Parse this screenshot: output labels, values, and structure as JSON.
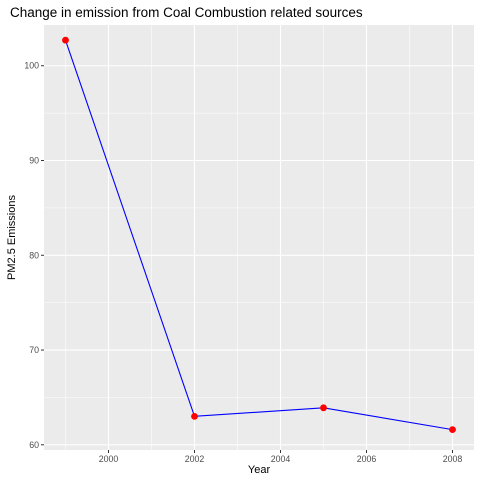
{
  "chart_data": {
    "type": "line",
    "title": "Change in emission from Coal Combustion related sources",
    "xlabel": "Year",
    "ylabel": "PM2.5 Emissions",
    "x": [
      1999,
      2002,
      2005,
      2008
    ],
    "series": [
      {
        "values": [
          102.7,
          63.0,
          63.9,
          61.6
        ]
      }
    ],
    "xlim": [
      1998.5,
      2008.5
    ],
    "ylim": [
      59.45,
      104.3
    ],
    "x_ticks": [
      2000,
      2002,
      2004,
      2006,
      2008
    ],
    "y_ticks": [
      60,
      70,
      80,
      90,
      100
    ],
    "x_tick_labels": [
      "2000",
      "2002",
      "2004",
      "2006",
      "2008"
    ],
    "y_tick_labels": [
      "60",
      "70",
      "80",
      "90",
      "100"
    ],
    "grid": true,
    "legend": "none",
    "colors": {
      "line": "#0000ff",
      "point": "#ff0000",
      "panel_background": "#ebebeb",
      "grid": "#ffffff",
      "tick_label": "#4d4d4d"
    }
  }
}
